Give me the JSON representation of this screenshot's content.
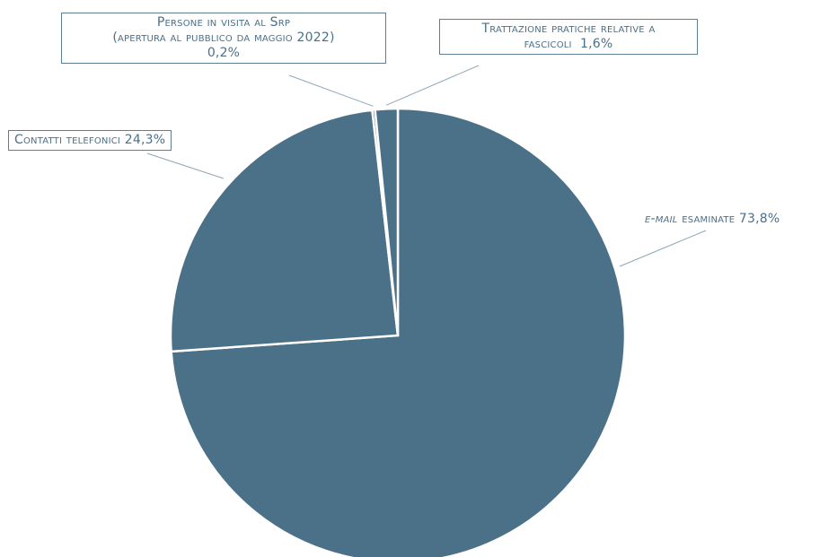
{
  "chart_data": {
    "type": "pie",
    "slices": [
      {
        "label": "E-mail esaminate",
        "label_emph": "e-mail",
        "label_rest": " esaminate",
        "value": 73.8,
        "value_text": "73,8%",
        "color": "#4b7189"
      },
      {
        "label": "Contatti telefonici",
        "value": 24.3,
        "value_text": "24,3%",
        "color": "#4b7189"
      },
      {
        "label_line1": "Persone in visita al Srp",
        "label_line2": "(apertura al pubblico da maggio 2022)",
        "value": 0.2,
        "value_text": "0,2%",
        "color": "#4b7189"
      },
      {
        "label_line1": "Trattazione pratiche relative a",
        "label_line2": "fascicoli",
        "value": 1.6,
        "value_text": "1,6%",
        "color": "#4b7189"
      }
    ],
    "start_slice": "E-mail esaminate",
    "direction": "clockwise",
    "start_angle": "top",
    "slice_border_color": "#ffffff",
    "leader_line_color": "#8fa6b5",
    "label_color": "#4a7089"
  }
}
